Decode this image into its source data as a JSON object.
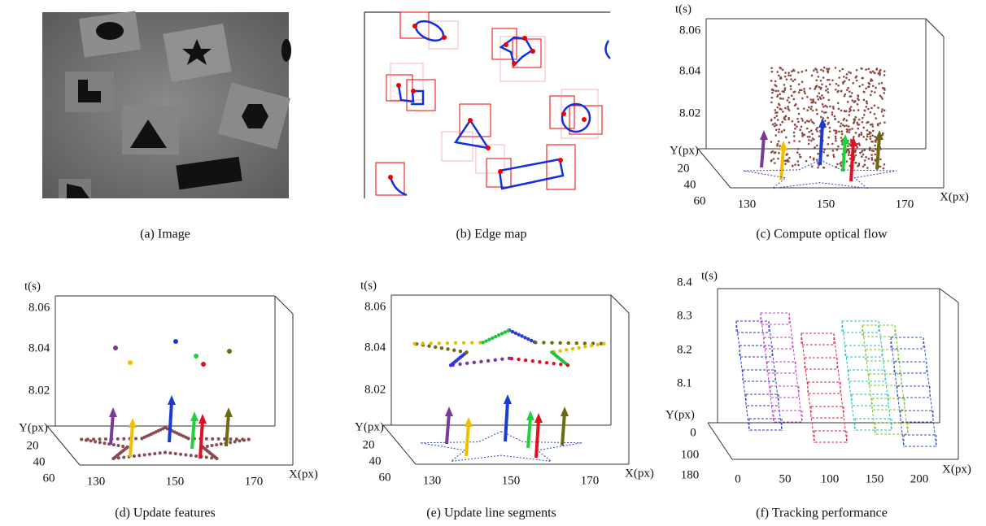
{
  "panels": [
    {
      "caption": "(a) Image"
    },
    {
      "caption": "(b) Edge map"
    },
    {
      "caption": "(c) Compute optical flow",
      "t_label": "t(s)",
      "t_ticks": [
        8.06,
        8.04,
        8.02
      ],
      "y_label": "Y(px)",
      "y_ticks": [
        20,
        40,
        60
      ],
      "x_label": "X(px)",
      "x_ticks": [
        130,
        150,
        170
      ]
    },
    {
      "caption": "(d) Update features",
      "t_label": "t(s)",
      "t_ticks": [
        8.06,
        8.04,
        8.02
      ],
      "y_label": "Y(px)",
      "y_ticks": [
        20,
        40,
        60
      ],
      "x_label": "X(px)",
      "x_ticks": [
        130,
        150,
        170
      ]
    },
    {
      "caption": "(e) Update line segments",
      "t_label": "t(s)",
      "t_ticks": [
        8.06,
        8.04,
        8.02
      ],
      "y_label": "Y(px)",
      "y_ticks": [
        20,
        40,
        60
      ],
      "x_label": "X(px)",
      "x_ticks": [
        130,
        150,
        170
      ]
    },
    {
      "caption": "(f) Tracking performance",
      "t_label": "t(s)",
      "t_ticks": [
        8.4,
        8.3,
        8.2,
        8.1
      ],
      "y_label": "Y(px)",
      "y_ticks": [
        0,
        100,
        180
      ],
      "x_label": "X(px)",
      "x_ticks": [
        0,
        50,
        100,
        150,
        200
      ]
    }
  ]
}
